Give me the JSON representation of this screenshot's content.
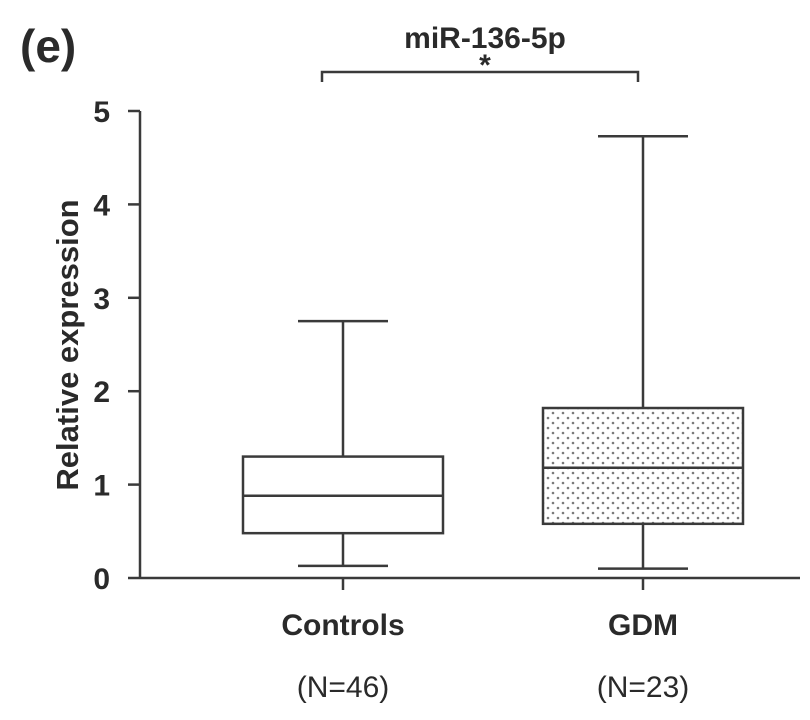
{
  "panel_label": "(e)",
  "chart_data": {
    "type": "boxplot",
    "title": "miR-136-5p",
    "ylabel": "Relative expression",
    "xlabel": "",
    "ylim": [
      0,
      5
    ],
    "yticks": [
      0,
      1,
      2,
      3,
      4,
      5
    ],
    "grid": false,
    "categories": [
      {
        "label": "Controls",
        "n_label": "(N=46)",
        "whisker_low": 0.13,
        "q1": 0.48,
        "median": 0.88,
        "q3": 1.3,
        "whisker_high": 2.75,
        "fill": "none"
      },
      {
        "label": "GDM",
        "n_label": "(N=23)",
        "whisker_low": 0.1,
        "q1": 0.58,
        "median": 1.18,
        "q3": 1.82,
        "whisker_high": 4.73,
        "fill": "dotted"
      }
    ],
    "significance": {
      "between": [
        0,
        1
      ],
      "label": "*"
    }
  },
  "colors": {
    "line": "#3a3a3a",
    "dot": "#7a7a7a",
    "text": "#2a2a2a"
  }
}
